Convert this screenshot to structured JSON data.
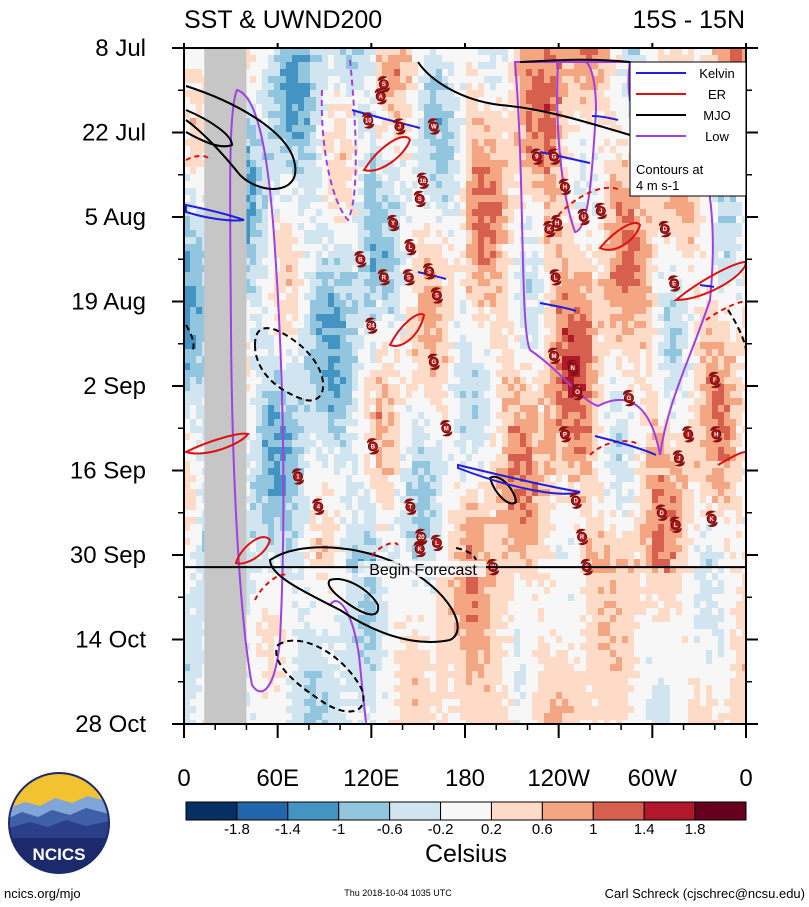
{
  "chart_data": {
    "type": "heatmap",
    "title": "SST & UWND200",
    "title_right": "15S - 15N",
    "x_ticks": [
      "0",
      "60E",
      "120E",
      "180",
      "120W",
      "60W",
      "0"
    ],
    "x_tick_degrees_east": [
      0,
      60,
      120,
      180,
      240,
      300,
      360
    ],
    "y_ticks": [
      "8 Jul",
      "22 Jul",
      "5 Aug",
      "19 Aug",
      "2 Sep",
      "16 Sep",
      "30 Sep",
      "14 Oct",
      "28 Oct"
    ],
    "y_tick_days": [
      0,
      14,
      28,
      42,
      56,
      70,
      84,
      98,
      112
    ],
    "forecast_start_day": 86,
    "forecast_label": "Begin Forecast",
    "land_mask_degrees_east": [
      13,
      40
    ],
    "colorbar": {
      "label": "Celsius",
      "tick_labels": [
        "-1.8",
        "-1.4",
        "-1",
        "-0.6",
        "-0.2",
        "0.2",
        "0.6",
        "1",
        "1.4",
        "1.8"
      ],
      "colors": [
        "#053061",
        "#2166ac",
        "#4393c3",
        "#92c5de",
        "#d1e5f0",
        "#f7f7f7",
        "#fddbc7",
        "#f4a582",
        "#d6604d",
        "#b2182b",
        "#67001f"
      ]
    },
    "legend": {
      "entries": [
        {
          "name": "Kelvin",
          "color": "#1f1fe0"
        },
        {
          "name": "ER",
          "color": "#e01010"
        },
        {
          "name": "MJO",
          "color": "#000000"
        },
        {
          "name": "Low",
          "color": "#a040e0"
        }
      ],
      "note": [
        "Contours at",
        "4 m s-1"
      ]
    },
    "storm_markers": [
      {
        "lon": 128,
        "day": 6,
        "label": "S"
      },
      {
        "lon": 126,
        "day": 8,
        "label": "A"
      },
      {
        "lon": 118,
        "day": 12,
        "label": "10"
      },
      {
        "lon": 138,
        "day": 13,
        "label": "J"
      },
      {
        "lon": 160,
        "day": 13,
        "label": "W"
      },
      {
        "lon": 226,
        "day": 18,
        "label": "9"
      },
      {
        "lon": 237,
        "day": 18,
        "label": "G"
      },
      {
        "lon": 153,
        "day": 22,
        "label": "16"
      },
      {
        "lon": 151,
        "day": 25,
        "label": "S"
      },
      {
        "lon": 244,
        "day": 23,
        "label": "H"
      },
      {
        "lon": 134,
        "day": 29,
        "label": "Y"
      },
      {
        "lon": 145,
        "day": 33,
        "label": "L"
      },
      {
        "lon": 239,
        "day": 29,
        "label": "H"
      },
      {
        "lon": 256,
        "day": 28,
        "label": "U"
      },
      {
        "lon": 267,
        "day": 27,
        "label": "J"
      },
      {
        "lon": 234,
        "day": 30,
        "label": "K"
      },
      {
        "lon": 308,
        "day": 30,
        "label": "D"
      },
      {
        "lon": 113,
        "day": 35,
        "label": "B"
      },
      {
        "lon": 128,
        "day": 38,
        "label": "R"
      },
      {
        "lon": 144,
        "day": 38,
        "label": "S"
      },
      {
        "lon": 157,
        "day": 37,
        "label": "S"
      },
      {
        "lon": 162,
        "day": 41,
        "label": "S"
      },
      {
        "lon": 238,
        "day": 38,
        "label": "L"
      },
      {
        "lon": 314,
        "day": 39,
        "label": "E"
      },
      {
        "lon": 120,
        "day": 46,
        "label": "24"
      },
      {
        "lon": 160,
        "day": 52,
        "label": "G"
      },
      {
        "lon": 237,
        "day": 51,
        "label": "M"
      },
      {
        "lon": 249,
        "day": 53,
        "label": "N"
      },
      {
        "lon": 340,
        "day": 55,
        "label": "F"
      },
      {
        "lon": 252,
        "day": 57,
        "label": "O"
      },
      {
        "lon": 285,
        "day": 58,
        "label": "G"
      },
      {
        "lon": 168,
        "day": 63,
        "label": "M"
      },
      {
        "lon": 244,
        "day": 64,
        "label": "P"
      },
      {
        "lon": 121,
        "day": 66,
        "label": "B"
      },
      {
        "lon": 323,
        "day": 64,
        "label": "I"
      },
      {
        "lon": 341,
        "day": 64,
        "label": "H"
      },
      {
        "lon": 317,
        "day": 68,
        "label": "J"
      },
      {
        "lon": 73,
        "day": 71,
        "label": "1"
      },
      {
        "lon": 251,
        "day": 75,
        "label": "D"
      },
      {
        "lon": 86,
        "day": 76,
        "label": "4"
      },
      {
        "lon": 145,
        "day": 76,
        "label": "T"
      },
      {
        "lon": 306,
        "day": 77,
        "label": "D"
      },
      {
        "lon": 315,
        "day": 79,
        "label": "L"
      },
      {
        "lon": 338,
        "day": 78,
        "label": "K"
      },
      {
        "lon": 152,
        "day": 81,
        "label": "20"
      },
      {
        "lon": 151,
        "day": 83,
        "label": "K"
      },
      {
        "lon": 162,
        "day": 82,
        "label": "L"
      },
      {
        "lon": 255,
        "day": 81,
        "label": "R"
      },
      {
        "lon": 198,
        "day": 86,
        "label": "W"
      },
      {
        "lon": 258,
        "day": 86,
        "label": "S"
      }
    ]
  },
  "footer": {
    "logo_text": "NCICS",
    "left": "ncics.org/mjo",
    "center": "Thu 2018-10-04 1035 UTC",
    "right": "Carl Schreck (cjschrec@ncsu.edu)"
  }
}
